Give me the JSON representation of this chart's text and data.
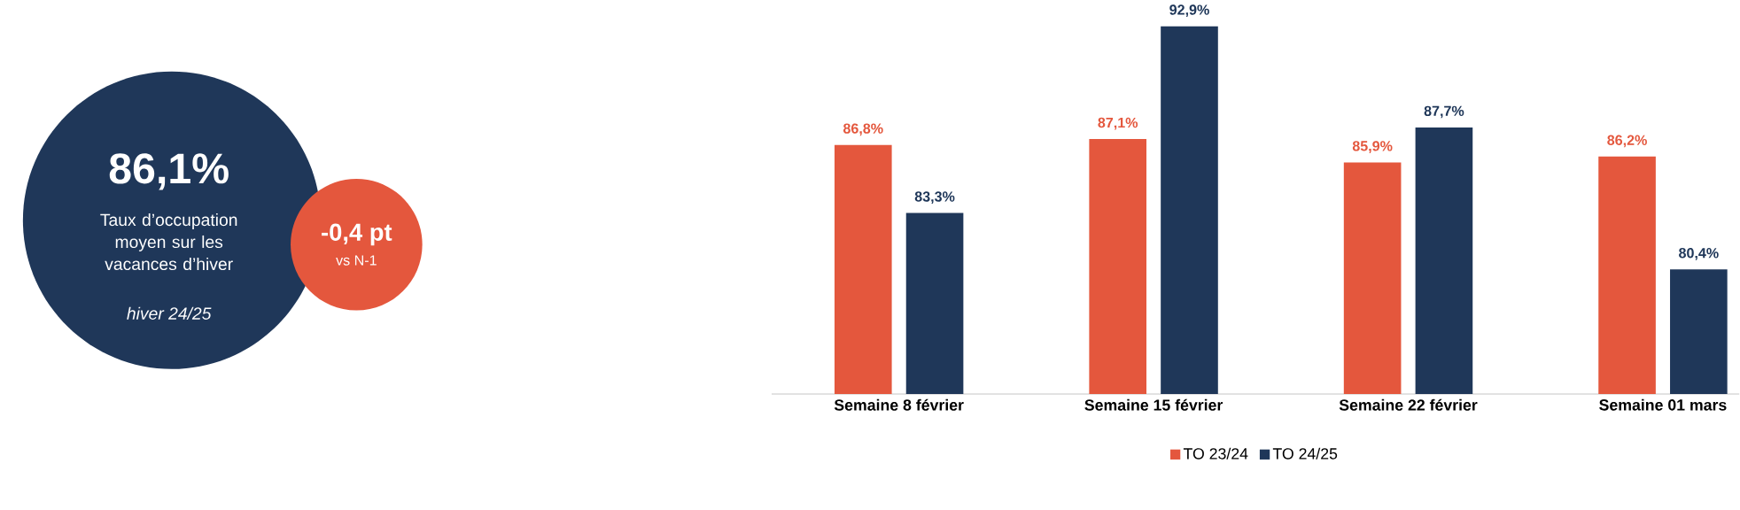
{
  "chart_data": [
    {
      "type": "other",
      "title": "86,1%",
      "subtitle": "Taux d’occupation moyen sur les vacances d’hiver",
      "annotations": [
        "hiver 24/25",
        "-0,4 pt",
        "vs N-1"
      ],
      "colors": [
        "#1f3759",
        "#e4573d"
      ]
    },
    {
      "type": "bar",
      "categories": [
        "Semaine 8 février",
        "Semaine 15 février",
        "Semaine 22 février",
        "Semaine 01 mars"
      ],
      "ylim": [
        74,
        92.9
      ],
      "tick_labels": "x",
      "legend": "bottom",
      "series": [
        {
          "name": "TO 23/24",
          "color": "#e4573d",
          "values": [
            86.8,
            87.1,
            85.9,
            86.2
          ],
          "value_labels": [
            "86,8%",
            "87,1%",
            "85,9%",
            "86,2%"
          ]
        },
        {
          "name": "TO 24/25",
          "color": "#1f3759",
          "values": [
            83.3,
            92.9,
            87.7,
            80.4
          ],
          "value_labels": [
            "83,3%",
            "92,9%",
            "87,7%",
            "80,4%"
          ]
        }
      ]
    }
  ]
}
